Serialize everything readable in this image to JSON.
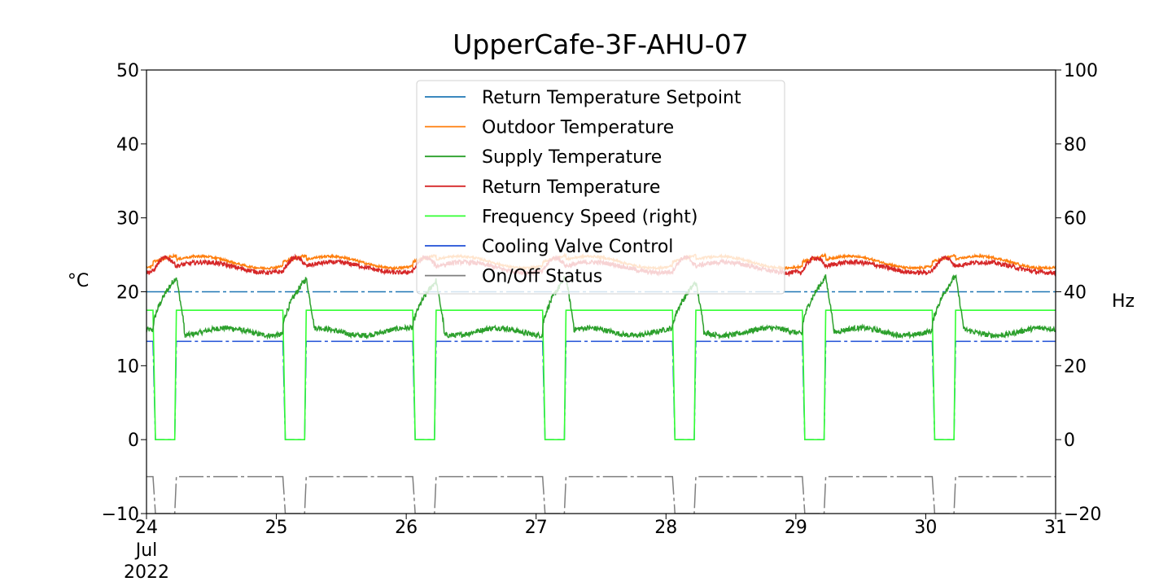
{
  "chart_data": {
    "type": "line",
    "title": "UpperCafe-3F-AHU-07",
    "ylabel_left": "°C",
    "ylabel_right": "Hz",
    "ylim_left": [
      -10,
      50
    ],
    "ylim_right": [
      -20,
      100
    ],
    "yticks_left": [
      "50",
      "40",
      "30",
      "20",
      "10",
      "0",
      "−10"
    ],
    "yticks_right": [
      "100",
      "80",
      "60",
      "40",
      "20",
      "0",
      "−20"
    ],
    "xlim": [
      24,
      31
    ],
    "xticks": [
      "24",
      "25",
      "26",
      "27",
      "28",
      "29",
      "30",
      "31"
    ],
    "xtick_sub": [
      "Jul",
      "2022"
    ],
    "grid": false,
    "legend_position": "upper center",
    "day_pattern": {
      "off_start_day": [
        24.05,
        25.05,
        26.05,
        27.05,
        28.05,
        29.05,
        30.05
      ],
      "off_end_day": [
        24.23,
        25.23,
        26.23,
        27.23,
        28.23,
        29.23,
        30.23
      ],
      "peak_supply": [
        22.0,
        21.8,
        21.5,
        22.0,
        21.3,
        22.0,
        22.2
      ]
    },
    "series": [
      {
        "name": "Return Temperature Setpoint",
        "color": "#1f77b4",
        "axis": "left",
        "value": 20.0,
        "dash": "dashdot"
      },
      {
        "name": "Outdoor Temperature",
        "color": "#ff7f0e",
        "axis": "left",
        "typical": [
          22.9,
          25.4
        ]
      },
      {
        "name": "Supply Temperature",
        "color": "#2ca02c",
        "axis": "left",
        "typical": [
          14.0,
          22.2
        ]
      },
      {
        "name": "Return Temperature",
        "color": "#d62728",
        "axis": "left",
        "typical": [
          22.2,
          25.9
        ]
      },
      {
        "name": "Frequency Speed (right)",
        "color": "#33ff33",
        "axis": "right",
        "on_value": 35.0,
        "off_value": 0
      },
      {
        "name": "Cooling Valve Control",
        "color": "#1f4fd6",
        "axis": "left",
        "on_value": 13.3,
        "off_value": 0
      },
      {
        "name": "On/Off Status",
        "color": "#7f7f7f",
        "axis": "left",
        "on_value": -5,
        "off_value": -10
      }
    ]
  }
}
